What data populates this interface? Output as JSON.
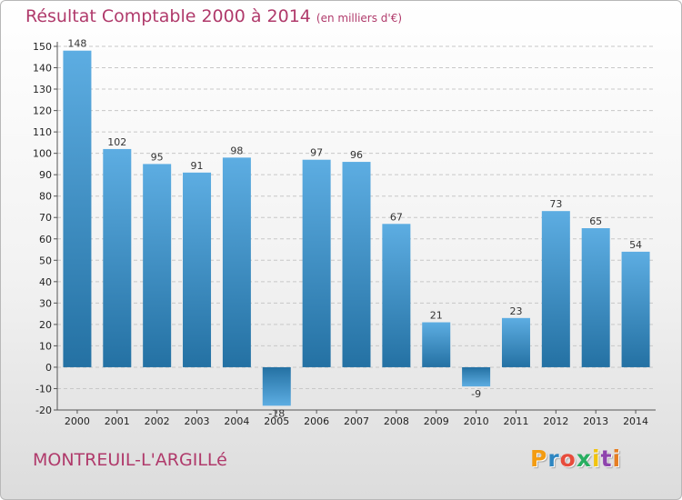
{
  "header": {
    "title": "Résultat Comptable 2000 à 2014",
    "subtitle": "(en milliers d'€)"
  },
  "footer": {
    "commune": "MONTREUIL-L'ARGILLé",
    "logo": [
      "P",
      "r",
      "o",
      "x",
      "i",
      "t",
      "i"
    ],
    "logo_colors": [
      "#f39c12",
      "#2e86c1",
      "#e74c3c",
      "#27ae60",
      "#f1c40f",
      "#8e44ad",
      "#e67e22"
    ]
  },
  "colors": {
    "title": "#b03a6b",
    "bar_light": "#5dade2",
    "bar_dark": "#2471a3",
    "grid": "#c8c8c8"
  },
  "chart_data": {
    "type": "bar",
    "categories": [
      "2000",
      "2001",
      "2002",
      "2003",
      "2004",
      "2005",
      "2006",
      "2007",
      "2008",
      "2009",
      "2010",
      "2011",
      "2012",
      "2013",
      "2014"
    ],
    "values": [
      148,
      102,
      95,
      91,
      98,
      -18,
      97,
      96,
      67,
      21,
      -9,
      23,
      73,
      65,
      54
    ],
    "value_labels": [
      "148",
      "102",
      "95",
      "91",
      "98",
      "-18",
      "97",
      "96",
      "67",
      "21",
      "-9",
      "23",
      "73",
      "65",
      "54"
    ],
    "yticks": [
      -20,
      -10,
      0,
      10,
      20,
      30,
      40,
      50,
      60,
      70,
      80,
      90,
      100,
      110,
      120,
      130,
      140,
      150
    ],
    "ytick_labels": [
      "-20",
      "-10",
      "0",
      "10",
      "20",
      "30",
      "40",
      "50",
      "60",
      "70",
      "80",
      "90",
      "100",
      "110",
      "120",
      "130",
      "140",
      "150"
    ],
    "ylim": [
      -20,
      150
    ],
    "grid": true,
    "xlabel": "",
    "ylabel": ""
  }
}
